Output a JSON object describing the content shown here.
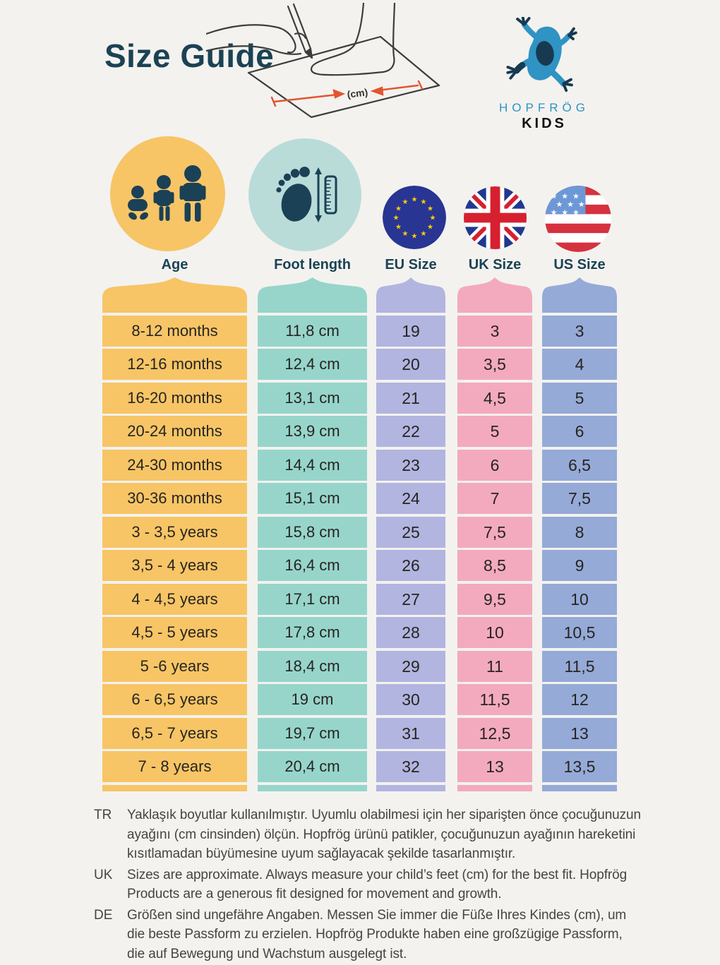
{
  "page": {
    "title": "Size Guide",
    "background_color": "#f3f2ef",
    "accent_navy": "#1b4254"
  },
  "brand": {
    "name": "HOPFRÖG",
    "sub": "KIDS",
    "blue": "#2f93c4"
  },
  "illustration": {
    "cm_label": "(cm)",
    "arrow_color": "#e2552e"
  },
  "header_columns": [
    {
      "id": "age",
      "label": "Age",
      "icon": "family-icon",
      "color": "#f7c566"
    },
    {
      "id": "foot",
      "label": "Foot length",
      "icon": "foot-measure-icon",
      "color": "#97d5cb",
      "circle_color": "#b9dcd9"
    },
    {
      "id": "eu",
      "label": "EU Size",
      "icon": "eu-flag-icon",
      "color": "#b2b5df"
    },
    {
      "id": "uk",
      "label": "UK Size",
      "icon": "uk-flag-icon",
      "color": "#f3aabe"
    },
    {
      "id": "us",
      "label": "US Size",
      "icon": "us-flag-icon",
      "color": "#95aad7"
    }
  ],
  "chart_data": {
    "type": "table",
    "title": "Size Guide",
    "columns": [
      "Age",
      "Foot length",
      "EU Size",
      "UK Size",
      "US Size"
    ],
    "rows": [
      [
        "8-12 months",
        "11,8 cm",
        "19",
        "3",
        "3"
      ],
      [
        "12-16 months",
        "12,4 cm",
        "20",
        "3,5",
        "4"
      ],
      [
        "16-20 months",
        "13,1 cm",
        "21",
        "4,5",
        "5"
      ],
      [
        "20-24 months",
        "13,9 cm",
        "22",
        "5",
        "6"
      ],
      [
        "24-30 months",
        "14,4 cm",
        "23",
        "6",
        "6,5"
      ],
      [
        "30-36 months",
        "15,1 cm",
        "24",
        "7",
        "7,5"
      ],
      [
        "3 - 3,5 years",
        "15,8 cm",
        "25",
        "7,5",
        "8"
      ],
      [
        "3,5 - 4 years",
        "16,4 cm",
        "26",
        "8,5",
        "9"
      ],
      [
        "4 - 4,5 years",
        "17,1 cm",
        "27",
        "9,5",
        "10"
      ],
      [
        "4,5 - 5 years",
        "17,8 cm",
        "28",
        "10",
        "10,5"
      ],
      [
        "5 -6 years",
        "18,4 cm",
        "29",
        "11",
        "11,5"
      ],
      [
        "6 - 6,5 years",
        "19 cm",
        "30",
        "11,5",
        "12"
      ],
      [
        "6,5 - 7 years",
        "19,7 cm",
        "31",
        "12,5",
        "13"
      ],
      [
        "7 - 8 years",
        "20,4 cm",
        "32",
        "13",
        "13,5"
      ]
    ]
  },
  "notes": [
    {
      "lang": "TR",
      "text": "Yaklaşık boyutlar kullanılmıştır. Uyumlu olabilmesi için her siparişten önce çocuğunuzun ayağını (cm cinsinden) ölçün. Hopfrög ürünü patikler, çocuğunuzun ayağının hareketini kısıtlamadan büyümesine uyum sağlayacak şekilde tasarlanmıştır."
    },
    {
      "lang": "UK",
      "text": "Sizes are approximate. Always measure your child’s feet (cm) for the best fit. Hopfrög Products are a generous fit designed for movement and growth."
    },
    {
      "lang": "DE",
      "text": "Größen sind ungefähre Angaben. Messen Sie immer die Füße Ihres Kindes (cm), um die beste Passform zu erzielen. Hopfrög Produkte haben eine großzügige Passform, die auf Bewegung und Wachstum ausgelegt ist."
    }
  ]
}
